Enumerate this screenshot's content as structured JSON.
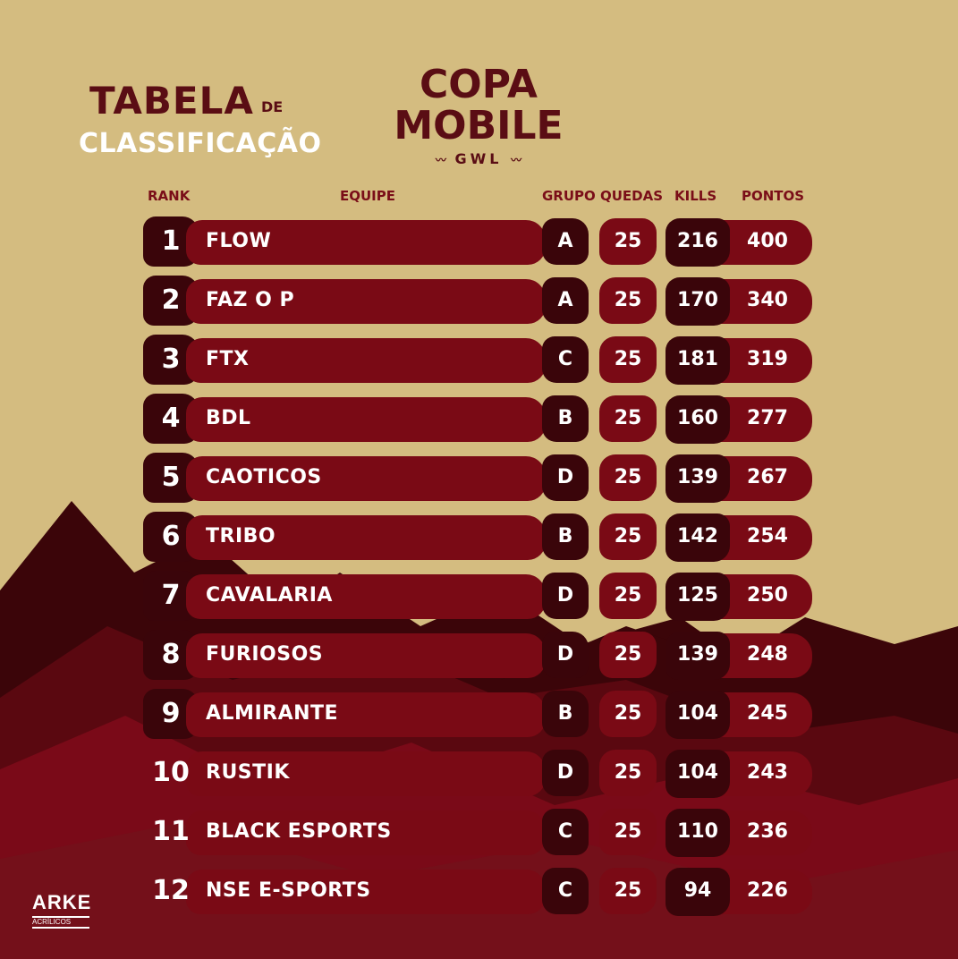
{
  "title": {
    "line1": "TABELA",
    "de": "DE",
    "line2": "CLASSIFICAÇÃO"
  },
  "logo": {
    "line1": "COPA",
    "line2": "MOBILE",
    "sub": "GWL"
  },
  "headers": {
    "rank": "RANK",
    "team": "EQUIPE",
    "group": "GRUPO",
    "drops": "QUEDAS",
    "kills": "KILLS",
    "points": "PONTOS"
  },
  "rows": [
    {
      "rank": "1",
      "team": "FLOW",
      "group": "A",
      "drops": "25",
      "kills": "216",
      "points": "400"
    },
    {
      "rank": "2",
      "team": "FAZ O P",
      "group": "A",
      "drops": "25",
      "kills": "170",
      "points": "340"
    },
    {
      "rank": "3",
      "team": "FTX",
      "group": "C",
      "drops": "25",
      "kills": "181",
      "points": "319"
    },
    {
      "rank": "4",
      "team": "BDL",
      "group": "B",
      "drops": "25",
      "kills": "160",
      "points": "277"
    },
    {
      "rank": "5",
      "team": "CAOTICOS",
      "group": "D",
      "drops": "25",
      "kills": "139",
      "points": "267"
    },
    {
      "rank": "6",
      "team": "TRIBO",
      "group": "B",
      "drops": "25",
      "kills": "142",
      "points": "254"
    },
    {
      "rank": "7",
      "team": "CAVALARIA",
      "group": "D",
      "drops": "25",
      "kills": "125",
      "points": "250"
    },
    {
      "rank": "8",
      "team": "FURIOSOS",
      "group": "D",
      "drops": "25",
      "kills": "139",
      "points": "248"
    },
    {
      "rank": "9",
      "team": "ALMIRANTE",
      "group": "B",
      "drops": "25",
      "kills": "104",
      "points": "245"
    },
    {
      "rank": "10",
      "team": "RUSTIK",
      "group": "D",
      "drops": "25",
      "kills": "104",
      "points": "243"
    },
    {
      "rank": "11",
      "team": "BLACK ESPORTS",
      "group": "C",
      "drops": "25",
      "kills": "110",
      "points": "236"
    },
    {
      "rank": "12",
      "team": "NSE E-SPORTS",
      "group": "C",
      "drops": "25",
      "kills": "94",
      "points": "226"
    }
  ],
  "brand": {
    "name": "ARKE",
    "sub": "ACRÍLICOS"
  },
  "colors": {
    "background": "#d4bc80",
    "dark_red": "#3a050a",
    "red": "#7a0a15",
    "title_red": "#5a0d14"
  }
}
